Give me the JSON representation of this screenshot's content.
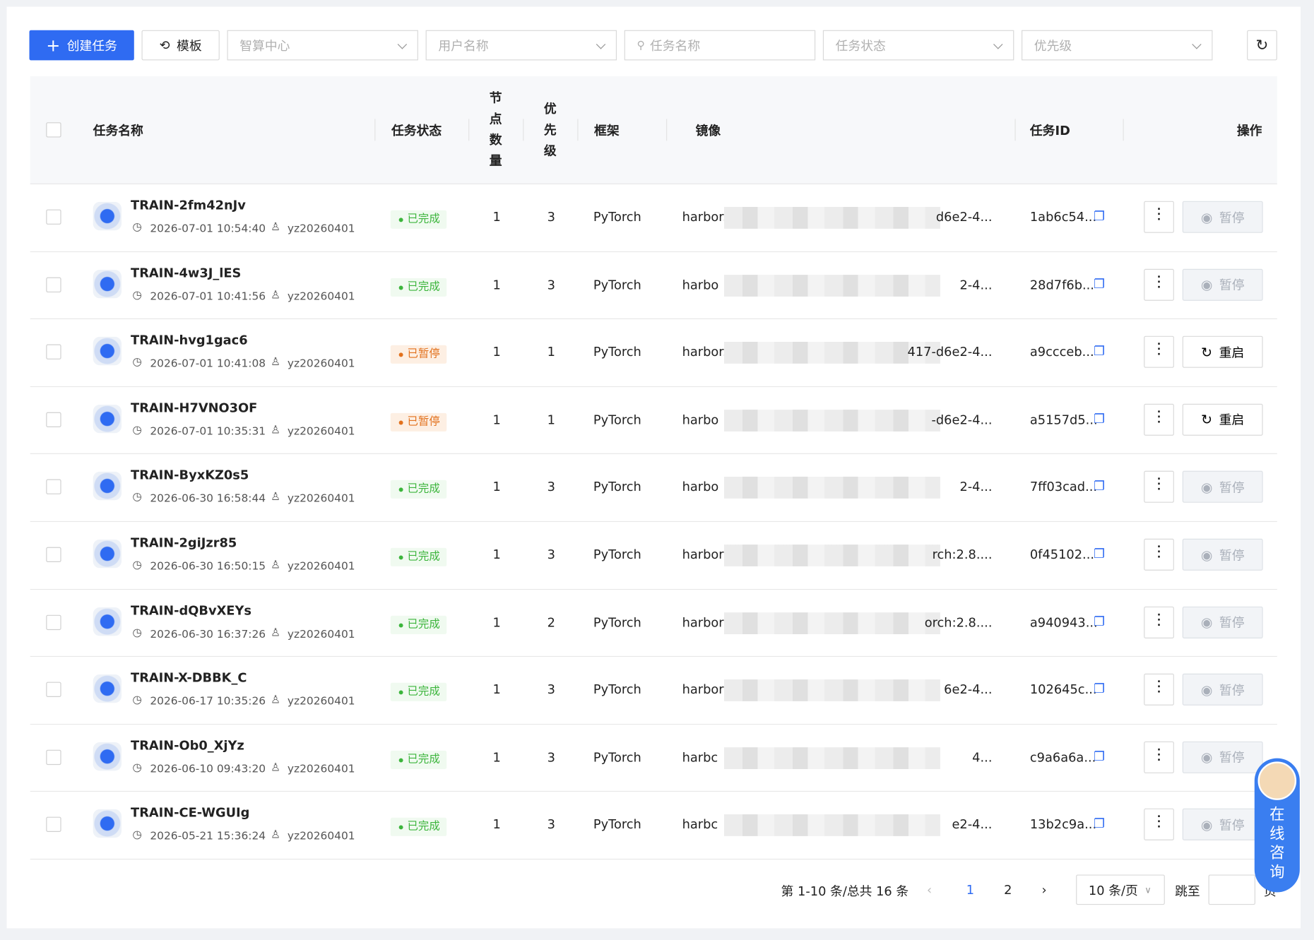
{
  "toolbar": {
    "create": "创建任务",
    "template": "模板",
    "filters": [
      "智算中心",
      "用户名称",
      "任务名称",
      "任务状态",
      "优先级"
    ]
  },
  "table": {
    "headers": [
      "任务名称",
      "任务状态",
      "节点数量",
      "优先级",
      "框架",
      "镜像",
      "任务ID",
      "操作"
    ],
    "rows": [
      {
        "name": "TRAIN-2fm42nJv",
        "time": "2026-07-01 10:54:40",
        "user": "yz20260401",
        "status": "已完成",
        "nodes": "1",
        "priority": "3",
        "framework": "PyTorch",
        "image_start": "harbor.",
        "image_end": "d6e2-4...",
        "id": "1ab6c54...",
        "action": "暂停"
      },
      {
        "name": "TRAIN-4w3J_lES",
        "time": "2026-07-01 10:41:56",
        "user": "yz20260401",
        "status": "已完成",
        "nodes": "1",
        "priority": "3",
        "framework": "PyTorch",
        "image_start": "harbo",
        "image_end": "2-4...",
        "id": "28d7f6b...",
        "action": "暂停"
      },
      {
        "name": "TRAIN-hvg1gac6",
        "time": "2026-07-01 10:41:08",
        "user": "yz20260401",
        "status": "已暂停",
        "nodes": "1",
        "priority": "1",
        "framework": "PyTorch",
        "image_start": "harbor.",
        "image_end": "417-d6e2-4...",
        "id": "a9ccceb...",
        "action": "重启"
      },
      {
        "name": "TRAIN-H7VNO3OF",
        "time": "2026-07-01 10:35:31",
        "user": "yz20260401",
        "status": "已暂停",
        "nodes": "1",
        "priority": "1",
        "framework": "PyTorch",
        "image_start": "harbo",
        "image_end": "-d6e2-4...",
        "id": "a5157d5...",
        "action": "重启"
      },
      {
        "name": "TRAIN-ByxKZ0s5",
        "time": "2026-06-30 16:58:44",
        "user": "yz20260401",
        "status": "已完成",
        "nodes": "1",
        "priority": "3",
        "framework": "PyTorch",
        "image_start": "harbo",
        "image_end": "2-4...",
        "id": "7ff03cad...",
        "action": "暂停"
      },
      {
        "name": "TRAIN-2giJzr85",
        "time": "2026-06-30 16:50:15",
        "user": "yz20260401",
        "status": "已完成",
        "nodes": "1",
        "priority": "3",
        "framework": "PyTorch",
        "image_start": "harbor",
        "image_end": "rch:2.8....",
        "id": "0f45102...",
        "action": "暂停"
      },
      {
        "name": "TRAIN-dQBvXEYs",
        "time": "2026-06-30 16:37:26",
        "user": "yz20260401",
        "status": "已完成",
        "nodes": "1",
        "priority": "2",
        "framework": "PyTorch",
        "image_start": "harbor",
        "image_end": "orch:2.8....",
        "id": "a940943...",
        "action": "暂停"
      },
      {
        "name": "TRAIN-X-DBBK_C",
        "time": "2026-06-17 10:35:26",
        "user": "yz20260401",
        "status": "已完成",
        "nodes": "1",
        "priority": "3",
        "framework": "PyTorch",
        "image_start": "harbor",
        "image_end": "6e2-4...",
        "id": "102645c...",
        "action": "暂停"
      },
      {
        "name": "TRAIN-Ob0_XjYz",
        "time": "2026-06-10 09:43:20",
        "user": "yz20260401",
        "status": "已完成",
        "nodes": "1",
        "priority": "3",
        "framework": "PyTorch",
        "image_start": "harbc",
        "image_end": "4...",
        "id": "c9a6a6a...",
        "action": "暂停"
      },
      {
        "name": "TRAIN-CE-WGUIg",
        "time": "2026-05-21 15:36:24",
        "user": "yz20260401",
        "status": "已完成",
        "nodes": "1",
        "priority": "3",
        "framework": "PyTorch",
        "image_start": "harbc",
        "image_end": "e2-4...",
        "id": "13b2c9a...",
        "action": "暂停"
      }
    ]
  },
  "pagination": {
    "summary": "第 1-10 条/总共 16 条",
    "pages": [
      "1",
      "2"
    ],
    "page_size": "10 条/页",
    "jump": "跳至",
    "page_unit": "页"
  },
  "float": {
    "label": "在线咨询"
  }
}
